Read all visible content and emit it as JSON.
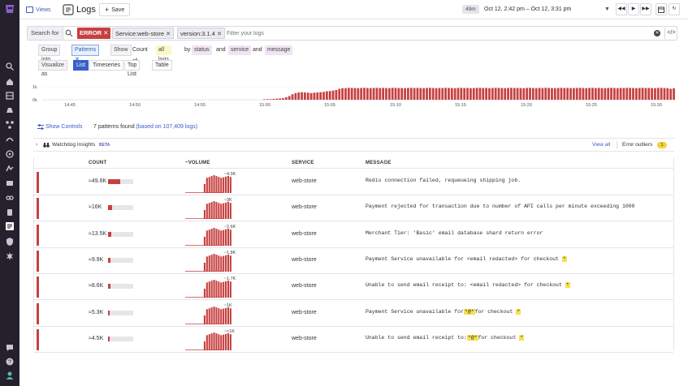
{
  "topbar": {
    "views_label": "Views",
    "title": "Logs",
    "save_label": "Save",
    "live_badge": "49m",
    "time_range": "Oct 12, 2:42 pm – Oct 12, 3:31 pm"
  },
  "search": {
    "label": "Search for",
    "chips": {
      "error": "ERROR",
      "service": "Service:web-store",
      "version": "version:3.1.4"
    },
    "placeholder": "Filter your logs"
  },
  "group": {
    "group_into": "Group into",
    "patterns": "Patterns",
    "show": "Show",
    "count_of": "Count of",
    "all_logs": "all logs",
    "by": "by",
    "facet1": "status",
    "and1": "and",
    "facet2": "service",
    "and2": "and",
    "facet3": "message"
  },
  "visualize": {
    "label": "Visualize as",
    "options": [
      "List",
      "Timeseries",
      "Top List",
      "Table"
    ],
    "selected": "List"
  },
  "timeline": {
    "y_labels": [
      "1k",
      "0k"
    ],
    "x_labels": [
      "14:45",
      "14:50",
      "14:55",
      "15:00",
      "15:05",
      "15:10",
      "15:15",
      "15:20",
      "15:25",
      "15:30"
    ],
    "bar_color": "#c74040",
    "bars": [
      0.03,
      0.05,
      0.05,
      0.07,
      0.09,
      0.11,
      0.13,
      0.2,
      0.3,
      0.45,
      0.55,
      0.6,
      0.62,
      0.6,
      0.58,
      0.55,
      0.58,
      0.6,
      0.62,
      0.65,
      0.7,
      0.72,
      0.75,
      0.8,
      0.9,
      0.95,
      0.95,
      0.98,
      0.97,
      0.96,
      0.95,
      0.97,
      0.98,
      0.96,
      0.95,
      0.97,
      0.98,
      0.96,
      0.97,
      0.96,
      0.95,
      0.98,
      0.97,
      0.96,
      0.96,
      0.95,
      0.97,
      0.98,
      0.96,
      0.97,
      0.96,
      0.95,
      0.97,
      0.98,
      0.96,
      0.95,
      0.97,
      0.96,
      0.98,
      0.97,
      0.96,
      0.95,
      0.97,
      0.98,
      0.96,
      0.97,
      0.95,
      0.96,
      0.97,
      0.98,
      0.96,
      0.97,
      0.95,
      0.96,
      0.98,
      0.97,
      0.96,
      0.95,
      0.97,
      0.98,
      0.96,
      0.97,
      0.96,
      0.95,
      0.97,
      0.98,
      0.96,
      0.95,
      0.97,
      0.96,
      0.98,
      0.97,
      0.96,
      0.95,
      0.97,
      0.98,
      0.96,
      0.97,
      0.95,
      0.96,
      0.97,
      0.98,
      0.96,
      0.95,
      0.97,
      0.98,
      0.96,
      0.97,
      0.96,
      0.95,
      0.97,
      0.98,
      0.96,
      0.95,
      0.97,
      0.96,
      0.98,
      0.97,
      0.96,
      0.95,
      0.97,
      0.98,
      0.96,
      0.97,
      0.96,
      0.95,
      0.97,
      0.98,
      0.96,
      0.95,
      0.9,
      0.94
    ]
  },
  "summary": {
    "toggle": "Show Controls",
    "found": "7 patterns found",
    "based_on": "(based on 107,409 logs)"
  },
  "watchdog": {
    "title": "Watchdog Insights",
    "beta": "BETA",
    "view_all": "View all",
    "outliers_label": "Error outliers",
    "outliers_count": "1"
  },
  "table": {
    "headers": {
      "count": "COUNT",
      "volume": "~VOLUME",
      "service": "SERVICE",
      "message": "MESSAGE"
    },
    "rows": [
      {
        "count": "≈49.6K",
        "fill": 0.48,
        "peak": "4.9K",
        "service": "web-store",
        "message": [
          [
            "Redis connection failed, requeueing shipping job.",
            false
          ]
        ]
      },
      {
        "count": "≈16K",
        "fill": 0.16,
        "peak": "3K",
        "service": "web-store",
        "message": [
          [
            "Payment rejected for transaction due to number of API calls per minute exceeding 1000",
            false
          ]
        ]
      },
      {
        "count": "≈13.5K",
        "fill": 0.14,
        "peak": "2.6K",
        "service": "web-store",
        "message": [
          [
            "Merchant Tier: 'Basic' email database shard return error",
            false
          ]
        ]
      },
      {
        "count": "≈9.9K",
        "fill": 0.1,
        "peak": "1.8K",
        "service": "web-store",
        "message": [
          [
            "Payment Service unavailable for <email redacted> for checkout ",
            false
          ],
          [
            "*",
            true
          ]
        ]
      },
      {
        "count": "≈8.6K",
        "fill": 0.09,
        "peak": "1.7K",
        "service": "web-store",
        "message": [
          [
            "Unable to send email receipt to: <email redacted> for checkout ",
            false
          ],
          [
            "*",
            true
          ]
        ]
      },
      {
        "count": "≈5.3K",
        "fill": 0.06,
        "peak": "1K",
        "service": "web-store",
        "message": [
          [
            "Payment Service unavailable for",
            false
          ],
          [
            "*@*",
            true
          ],
          [
            "for checkout ",
            false
          ],
          [
            "*",
            true
          ]
        ]
      },
      {
        "count": "≈4.5K",
        "fill": 0.05,
        "peak": "<1K",
        "service": "web-store",
        "message": [
          [
            "Unable to send email receipt to:",
            false
          ],
          [
            "*@*",
            true
          ],
          [
            "for checkout ",
            false
          ],
          [
            "*",
            true
          ]
        ]
      }
    ],
    "volume_shapes": [
      [
        0.05,
        0.05,
        0.05,
        0.05,
        0.05,
        0.05,
        0.05,
        0.05,
        0.05,
        0.1,
        0.15,
        0.15,
        0.5,
        0.85,
        0.9,
        0.95,
        1.0,
        0.95,
        0.9,
        0.85,
        0.88,
        0.92,
        0.96,
        0.9
      ],
      [
        0.05,
        0.05,
        0.05,
        0.05,
        0.05,
        0.05,
        0.05,
        0.05,
        0.05,
        0.1,
        0.15,
        0.15,
        0.5,
        0.85,
        0.9,
        0.95,
        1.0,
        0.95,
        0.9,
        0.85,
        0.88,
        0.92,
        0.96,
        0.9
      ],
      [
        0.05,
        0.05,
        0.05,
        0.05,
        0.05,
        0.05,
        0.05,
        0.05,
        0.05,
        0.1,
        0.15,
        0.15,
        0.5,
        0.85,
        0.9,
        0.95,
        1.0,
        0.95,
        0.9,
        0.85,
        0.88,
        0.92,
        0.96,
        0.9
      ],
      [
        0.05,
        0.05,
        0.05,
        0.05,
        0.05,
        0.05,
        0.05,
        0.05,
        0.05,
        0.1,
        0.15,
        0.15,
        0.5,
        0.85,
        0.9,
        0.95,
        1.0,
        0.95,
        0.9,
        0.85,
        0.88,
        0.92,
        0.96,
        0.9
      ],
      [
        0.05,
        0.05,
        0.05,
        0.05,
        0.05,
        0.05,
        0.05,
        0.05,
        0.05,
        0.1,
        0.15,
        0.15,
        0.5,
        0.85,
        0.9,
        0.95,
        1.0,
        0.95,
        0.9,
        0.85,
        0.88,
        0.92,
        0.96,
        0.9
      ],
      [
        0.05,
        0.05,
        0.05,
        0.05,
        0.05,
        0.05,
        0.05,
        0.05,
        0.05,
        0.1,
        0.15,
        0.15,
        0.5,
        0.85,
        0.9,
        0.95,
        1.0,
        0.95,
        0.9,
        0.85,
        0.88,
        0.92,
        0.96,
        0.9
      ],
      [
        0.05,
        0.05,
        0.05,
        0.05,
        0.05,
        0.05,
        0.05,
        0.05,
        0.05,
        0.1,
        0.15,
        0.15,
        0.5,
        0.85,
        0.9,
        0.95,
        1.0,
        0.95,
        0.9,
        0.85,
        0.88,
        0.92,
        0.96,
        0.9
      ]
    ]
  },
  "nav_icons": [
    "datadog-logo",
    "search-icon",
    "home-icon",
    "dashboards-icon",
    "monitors-icon",
    "infrastructure-icon",
    "apm-icon",
    "notebooks-icon",
    "synthetics-icon",
    "security-icon",
    "network-icon",
    "integrations-icon",
    "logs-icon",
    "shield-icon",
    "settings-icon",
    "chat-icon",
    "help-icon",
    "user-icon"
  ],
  "colors": {
    "accent": "#3a5fc8",
    "error": "#c74040",
    "nav_bg": "#24202c"
  }
}
